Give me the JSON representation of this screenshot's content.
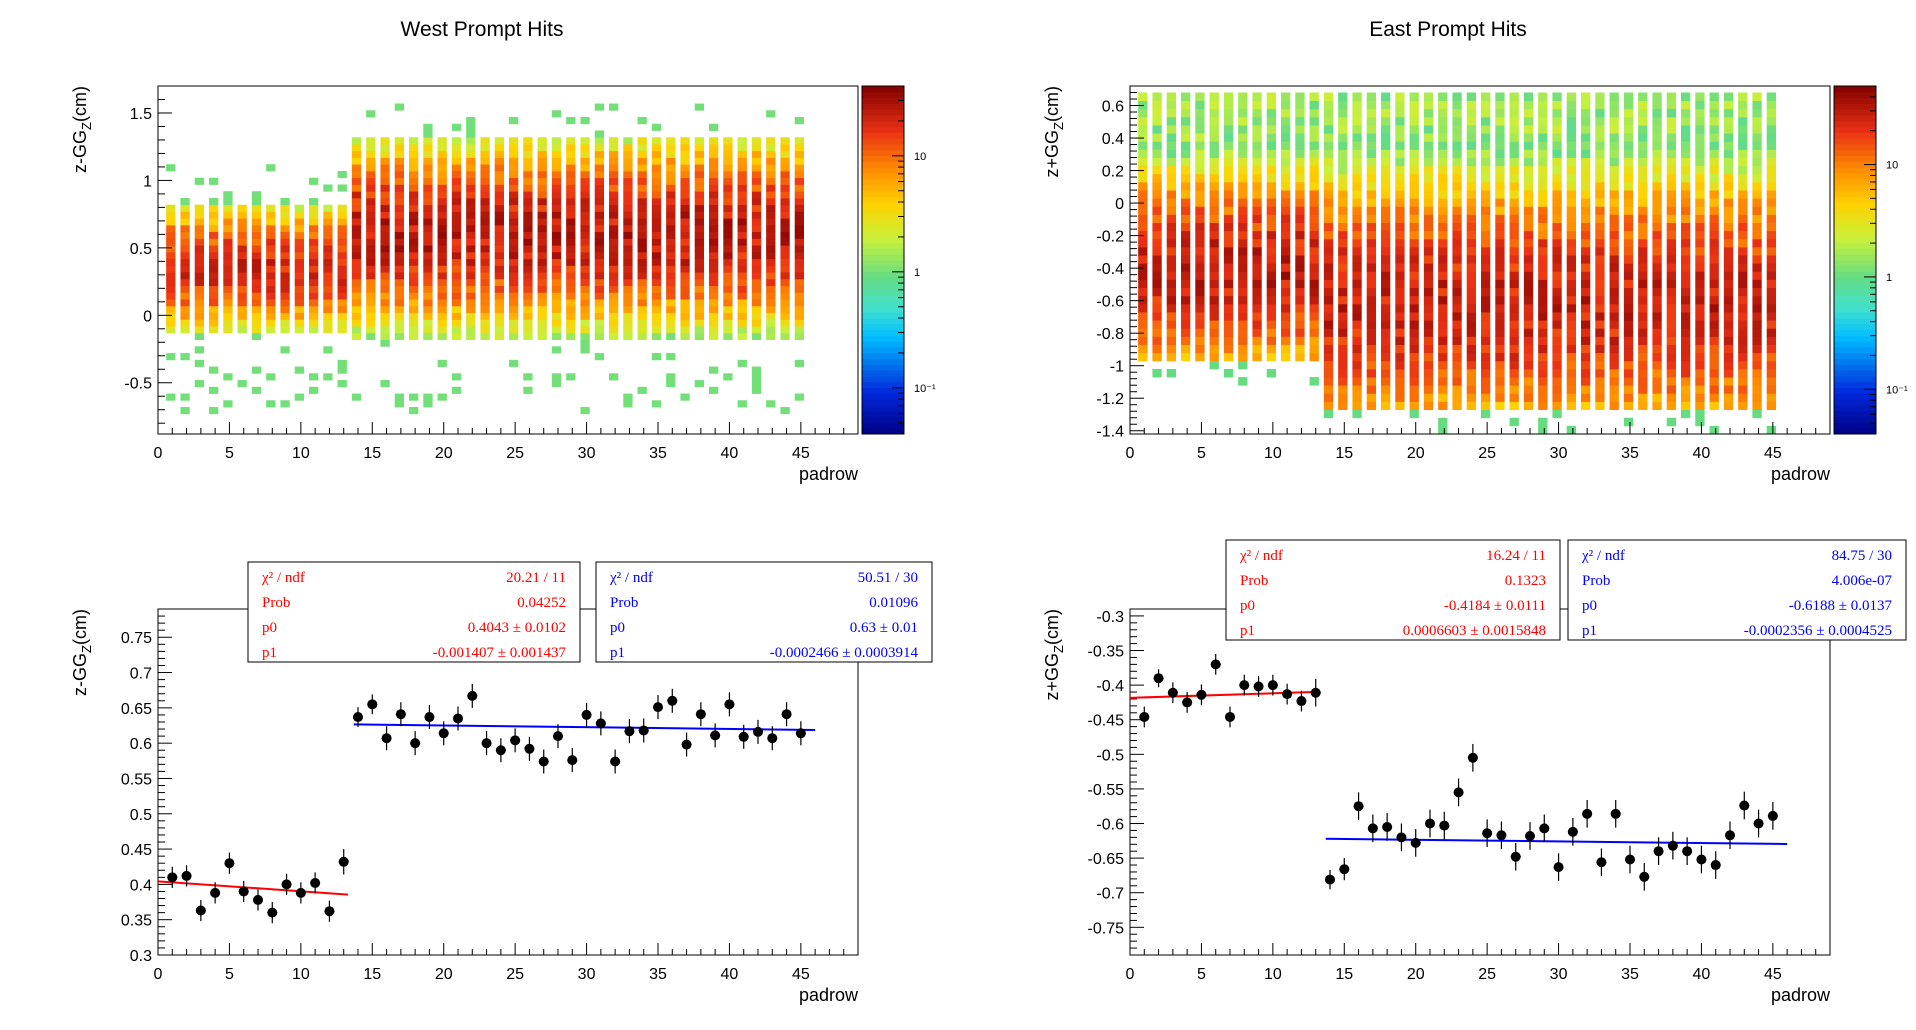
{
  "colors": {
    "red_fit": "#ff0000",
    "blue_fit": "#0000ff",
    "points": "#000000"
  },
  "chart_data": [
    {
      "id": "west-heatmap",
      "type": "heatmap",
      "title": "West Prompt Hits",
      "xlabel": "padrow",
      "ylabel": "z-GG_Z(cm)",
      "xlim": [
        0,
        49
      ],
      "ylim": [
        -0.88,
        1.7
      ],
      "xticks": [
        0,
        5,
        10,
        15,
        20,
        25,
        30,
        35,
        40,
        45
      ],
      "yticks": [
        -0.5,
        0,
        0.5,
        1,
        1.5
      ],
      "ytick_labels": [
        "-0.5",
        "0",
        "0.5",
        "1",
        "1.5"
      ],
      "colorbar_ticks": [
        {
          "value": 0.1,
          "label": "10⁻¹"
        },
        {
          "value": 1,
          "label": "1"
        },
        {
          "value": 10,
          "label": "10"
        }
      ],
      "colorbar_range": [
        0.04,
        40
      ],
      "rows": 45,
      "bin_height": 0.05,
      "split_row": 13,
      "segments": [
        {
          "from": 1,
          "to": 13,
          "core": [
            -0.15,
            0.8
          ],
          "peak": 0.35,
          "sigma": 0.22,
          "amp": 20,
          "stray_min": -0.75,
          "stray_max": 1.2
        },
        {
          "from": 14,
          "to": 45,
          "core": [
            -0.2,
            1.3
          ],
          "peak": 0.6,
          "sigma": 0.32,
          "amp": 25,
          "stray_min": -0.75,
          "stray_max": 1.55
        }
      ]
    },
    {
      "id": "east-heatmap",
      "type": "heatmap",
      "title": "East Prompt Hits",
      "xlabel": "padrow",
      "ylabel": "z+GG_Z(cm)",
      "xlim": [
        0,
        49
      ],
      "ylim": [
        -1.42,
        0.72
      ],
      "xticks": [
        0,
        5,
        10,
        15,
        20,
        25,
        30,
        35,
        40,
        45
      ],
      "yticks": [
        -1.4,
        -1.2,
        -1,
        -0.8,
        -0.6,
        -0.4,
        -0.2,
        0,
        0.2,
        0.4,
        0.6
      ],
      "ytick_labels": [
        "-1.4",
        "-1.2",
        "-1",
        "-0.8",
        "-0.6",
        "-0.4",
        "-0.2",
        "0",
        "0.2",
        "0.4",
        "0.6"
      ],
      "colorbar_ticks": [
        {
          "value": 0.1,
          "label": "10⁻¹"
        },
        {
          "value": 1,
          "label": "1"
        },
        {
          "value": 10,
          "label": "10"
        }
      ],
      "colorbar_range": [
        0.04,
        50
      ],
      "rows": 45,
      "bin_height": 0.05,
      "split_row": 13,
      "segments": [
        {
          "from": 1,
          "to": 13,
          "core": [
            -0.95,
            0.7
          ],
          "peak": -0.42,
          "sigma": 0.3,
          "amp": 30,
          "stray_min": -1.1,
          "stray_max": 0.7
        },
        {
          "from": 14,
          "to": 45,
          "core": [
            -1.25,
            0.7
          ],
          "peak": -0.62,
          "sigma": 0.38,
          "amp": 28,
          "stray_min": -1.4,
          "stray_max": 0.7
        }
      ]
    },
    {
      "id": "west-profile",
      "type": "scatter",
      "title": "",
      "xlabel": "padrow",
      "ylabel": "z-GG_Z(cm)",
      "xlim": [
        0,
        49
      ],
      "ylim": [
        0.3,
        0.79
      ],
      "xticks": [
        0,
        5,
        10,
        15,
        20,
        25,
        30,
        35,
        40,
        45
      ],
      "yticks": [
        0.3,
        0.35,
        0.4,
        0.45,
        0.5,
        0.55,
        0.6,
        0.65,
        0.7,
        0.75
      ],
      "ytick_labels": [
        "0.3",
        "0.35",
        "0.4",
        "0.45",
        "0.5",
        "0.55",
        "0.6",
        "0.65",
        "0.7",
        "0.75"
      ],
      "series": [
        {
          "x": [
            1,
            2,
            3,
            4,
            5,
            6,
            7,
            8,
            9,
            10,
            11,
            12,
            13,
            14,
            15,
            16,
            17,
            18,
            19,
            20,
            21,
            22,
            23,
            24,
            25,
            26,
            27,
            28,
            29,
            30,
            31,
            32,
            33,
            34,
            35,
            36,
            37,
            38,
            39,
            40,
            41,
            42,
            43,
            44,
            45
          ],
          "y": [
            0.41,
            0.412,
            0.363,
            0.388,
            0.43,
            0.39,
            0.378,
            0.36,
            0.4,
            0.388,
            0.402,
            0.362,
            0.432,
            0.637,
            0.655,
            0.607,
            0.641,
            0.6,
            0.637,
            0.614,
            0.635,
            0.667,
            0.6,
            0.59,
            0.604,
            0.592,
            0.574,
            0.61,
            0.576,
            0.64,
            0.628,
            0.574,
            0.617,
            0.618,
            0.651,
            0.66,
            0.598,
            0.641,
            0.611,
            0.655,
            0.609,
            0.616,
            0.607,
            0.641,
            0.614
          ],
          "err": [
            0.015,
            0.015,
            0.015,
            0.015,
            0.015,
            0.015,
            0.015,
            0.015,
            0.015,
            0.015,
            0.015,
            0.015,
            0.018,
            0.014,
            0.014,
            0.017,
            0.017,
            0.017,
            0.017,
            0.017,
            0.017,
            0.017,
            0.017,
            0.017,
            0.017,
            0.017,
            0.017,
            0.017,
            0.017,
            0.017,
            0.017,
            0.017,
            0.017,
            0.017,
            0.017,
            0.017,
            0.017,
            0.017,
            0.017,
            0.017,
            0.017,
            0.017,
            0.017,
            0.017,
            0.017
          ]
        }
      ],
      "fits": [
        {
          "color": "#ff0000",
          "x_range": [
            0,
            13.3
          ],
          "p0": 0.4043,
          "p1": -0.001407
        },
        {
          "color": "#0000ff",
          "x_range": [
            13.7,
            46
          ],
          "p0": 0.63,
          "p1": -0.0002466
        }
      ],
      "stat_boxes": [
        {
          "color": "#ff0000",
          "rows": [
            {
              "label": "χ² / ndf",
              "value": "20.21 / 11"
            },
            {
              "label": "Prob",
              "value": "0.04252"
            },
            {
              "label": "p0",
              "value": "0.4043 ± 0.0102"
            },
            {
              "label": "p1",
              "value": "-0.001407 ± 0.001437"
            }
          ]
        },
        {
          "color": "#0000ff",
          "rows": [
            {
              "label": "χ² / ndf",
              "value": "50.51 / 30"
            },
            {
              "label": "Prob",
              "value": "0.01096"
            },
            {
              "label": "p0",
              "value": "0.63 ± 0.01"
            },
            {
              "label": "p1",
              "value": "-0.0002466 ± 0.0003914"
            }
          ]
        }
      ]
    },
    {
      "id": "east-profile",
      "type": "scatter",
      "title": "",
      "xlabel": "padrow",
      "ylabel": "z+GG_Z(cm)",
      "xlim": [
        0,
        49
      ],
      "ylim": [
        -0.79,
        -0.29
      ],
      "xticks": [
        0,
        5,
        10,
        15,
        20,
        25,
        30,
        35,
        40,
        45
      ],
      "yticks": [
        -0.75,
        -0.7,
        -0.65,
        -0.6,
        -0.55,
        -0.5,
        -0.45,
        -0.4,
        -0.35,
        -0.3
      ],
      "ytick_labels": [
        "-0.75",
        "-0.7",
        "-0.65",
        "-0.6",
        "-0.55",
        "-0.5",
        "-0.45",
        "-0.4",
        "-0.35",
        "-0.3"
      ],
      "series": [
        {
          "x": [
            1,
            2,
            3,
            4,
            5,
            6,
            7,
            8,
            9,
            10,
            11,
            12,
            13,
            14,
            15,
            16,
            17,
            18,
            19,
            20,
            21,
            22,
            23,
            24,
            25,
            26,
            27,
            28,
            29,
            30,
            31,
            32,
            33,
            34,
            35,
            36,
            37,
            38,
            39,
            40,
            41,
            42,
            43,
            44,
            45
          ],
          "y": [
            -0.446,
            -0.39,
            -0.411,
            -0.425,
            -0.414,
            -0.37,
            -0.446,
            -0.4,
            -0.402,
            -0.4,
            -0.413,
            -0.423,
            -0.411,
            -0.681,
            -0.666,
            -0.575,
            -0.607,
            -0.605,
            -0.62,
            -0.628,
            -0.6,
            -0.603,
            -0.555,
            -0.505,
            -0.614,
            -0.617,
            -0.648,
            -0.618,
            -0.607,
            -0.663,
            -0.612,
            -0.586,
            -0.656,
            -0.586,
            -0.652,
            -0.677,
            -0.64,
            -0.632,
            -0.64,
            -0.652,
            -0.66,
            -0.617,
            -0.574,
            -0.6,
            -0.589
          ],
          "err": [
            0.015,
            0.013,
            0.015,
            0.015,
            0.015,
            0.015,
            0.015,
            0.015,
            0.015,
            0.015,
            0.015,
            0.015,
            0.02,
            0.014,
            0.016,
            0.02,
            0.02,
            0.02,
            0.02,
            0.02,
            0.02,
            0.02,
            0.02,
            0.02,
            0.02,
            0.02,
            0.02,
            0.02,
            0.02,
            0.02,
            0.02,
            0.02,
            0.02,
            0.02,
            0.02,
            0.02,
            0.02,
            0.02,
            0.02,
            0.02,
            0.02,
            0.02,
            0.02,
            0.02,
            0.02
          ]
        }
      ],
      "fits": [
        {
          "color": "#ff0000",
          "x_range": [
            0,
            13.3
          ],
          "p0": -0.4184,
          "p1": 0.0006603
        },
        {
          "color": "#0000ff",
          "x_range": [
            13.7,
            46
          ],
          "p0": -0.6188,
          "p1": -0.0002356
        }
      ],
      "stat_boxes": [
        {
          "color": "#ff0000",
          "rows": [
            {
              "label": "χ² / ndf",
              "value": "16.24 / 11"
            },
            {
              "label": "Prob",
              "value": "0.1323"
            },
            {
              "label": "p0",
              "value": "-0.4184 ± 0.0111"
            },
            {
              "label": "p1",
              "value": "0.0006603 ± 0.0015848"
            }
          ]
        },
        {
          "color": "#0000ff",
          "rows": [
            {
              "label": "χ² / ndf",
              "value": "84.75 / 30"
            },
            {
              "label": "Prob",
              "value": "4.006e-07"
            },
            {
              "label": "p0",
              "value": "-0.6188 ± 0.0137"
            },
            {
              "label": "p1",
              "value": "-0.0002356 ± 0.0004525"
            }
          ]
        }
      ]
    }
  ]
}
